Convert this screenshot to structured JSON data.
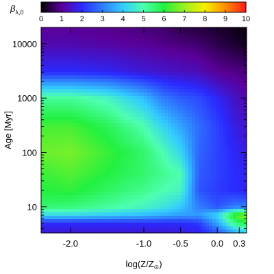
{
  "chart_data": {
    "type": "heatmap",
    "title": "",
    "xlabel": "log(Z/Z",
    "xlabel_sub": "⊙",
    "xlabel_close": ")",
    "ylabel": "Age [Myr]",
    "y_scale": "log",
    "xlim": [
      -2.4,
      0.4
    ],
    "ylim": [
      3.3,
      20000
    ],
    "x_ticks": [
      -2.0,
      -1.0,
      -0.5,
      0.0,
      0.3
    ],
    "x_tick_labels": [
      "-2.0",
      "-1.0",
      "-0.5",
      "0.0",
      "0.3"
    ],
    "y_ticks": [
      10,
      100,
      1000,
      10000
    ],
    "y_tick_labels": [
      "10",
      "100",
      "1000",
      "10000"
    ],
    "colorbar": {
      "label": "β",
      "label_sub": "λ,0",
      "range": [
        0,
        10
      ],
      "ticks": [
        0,
        1,
        2,
        3,
        4,
        5,
        6,
        7,
        8,
        9,
        10
      ],
      "tick_labels": [
        "0",
        "1",
        "2",
        "3",
        "4",
        "5",
        "6",
        "7",
        "8",
        "9",
        "10"
      ],
      "colormap": [
        "#000000",
        "#5a0099",
        "#2a2aff",
        "#2f7dff",
        "#33ccff",
        "#4dffb0",
        "#22f040",
        "#9cf020",
        "#f6f000",
        "#ff8c00",
        "#ff1a1a"
      ]
    },
    "grid": false,
    "z_values_estimated": {
      "x": [
        -2.4,
        -2.0,
        -1.5,
        -1.0,
        -0.75,
        -0.5,
        -0.25,
        0.0,
        0.25,
        0.4
      ],
      "y": [
        3.3,
        5,
        7,
        10,
        20,
        40,
        100,
        300,
        1000,
        3000,
        10000,
        20000
      ],
      "z": [
        [
          1.6,
          1.6,
          1.6,
          1.6,
          1.6,
          1.7,
          1.8,
          2.5,
          3.5,
          4.0
        ],
        [
          2.0,
          2.0,
          2.0,
          2.0,
          2.0,
          2.0,
          2.2,
          3.5,
          5.5,
          6.0
        ],
        [
          4.2,
          4.2,
          4.0,
          3.8,
          3.6,
          3.4,
          3.4,
          4.2,
          6.5,
          7.0
        ],
        [
          5.6,
          5.5,
          5.2,
          4.8,
          4.5,
          4.0,
          3.0,
          2.5,
          3.0,
          3.0
        ],
        [
          6.0,
          6.1,
          5.7,
          5.3,
          5.0,
          4.8,
          2.5,
          2.2,
          2.0,
          1.8
        ],
        [
          6.2,
          6.4,
          6.0,
          5.6,
          5.3,
          5.0,
          2.6,
          2.3,
          2.0,
          1.8
        ],
        [
          6.6,
          6.7,
          6.2,
          5.6,
          5.0,
          4.2,
          2.7,
          2.3,
          1.9,
          1.7
        ],
        [
          6.3,
          6.3,
          5.8,
          5.0,
          4.2,
          3.5,
          2.8,
          2.3,
          1.7,
          1.5
        ],
        [
          5.2,
          5.2,
          4.8,
          3.8,
          3.0,
          2.6,
          2.4,
          1.9,
          1.4,
          1.2
        ],
        [
          2.0,
          2.0,
          1.9,
          1.6,
          1.5,
          1.4,
          1.3,
          1.0,
          0.9,
          0.8
        ],
        [
          1.2,
          1.2,
          1.1,
          1.0,
          0.9,
          0.8,
          0.7,
          0.5,
          0.3,
          0.2
        ],
        [
          1.0,
          1.0,
          0.9,
          0.8,
          0.7,
          0.5,
          0.4,
          0.3,
          0.15,
          0.1
        ]
      ]
    }
  }
}
